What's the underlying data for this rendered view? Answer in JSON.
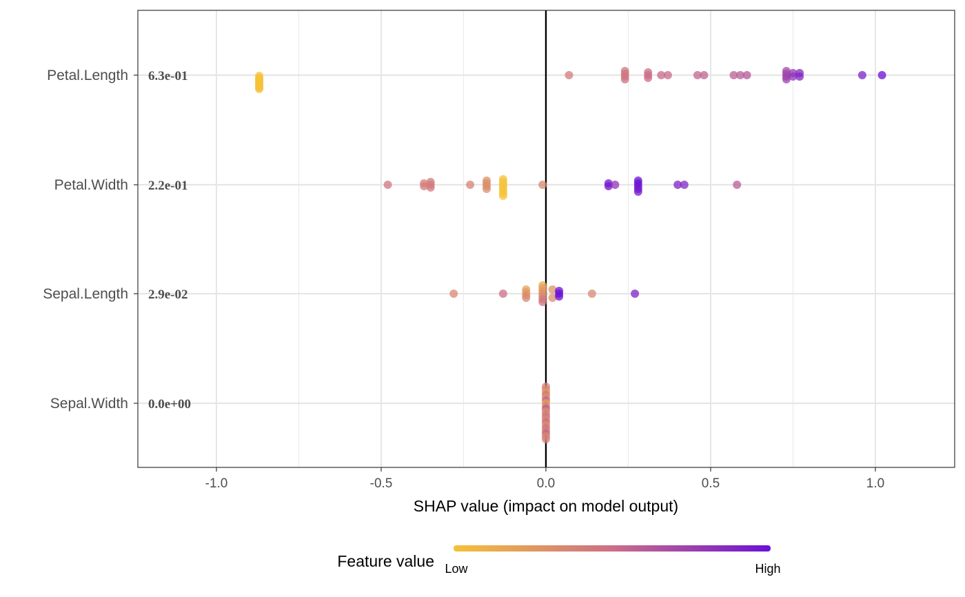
{
  "chart_data": {
    "type": "scatter",
    "title": "",
    "xlabel": "SHAP value (impact on model output)",
    "xlim": [
      -1.2,
      1.2
    ],
    "x_ticks": [
      -1.0,
      -0.5,
      0.0,
      0.5,
      1.0
    ],
    "x_tick_labels": [
      "-1.0",
      "-0.5",
      "0.0",
      "0.5",
      "1.0"
    ],
    "grid": true,
    "zero_line": true,
    "legend": {
      "title": "Feature value",
      "low_label": "Low",
      "high_label": "High",
      "low_color": "#f5c13a",
      "high_color": "#6a10d6",
      "placement": "bottom"
    },
    "features": [
      {
        "name": "Petal.Length",
        "importance": "6.3e-01",
        "points": [
          [
            -0.87,
            0.0,
            1
          ],
          [
            -0.87,
            0.0,
            4
          ],
          [
            -0.87,
            0.0,
            6
          ],
          [
            -0.87,
            0.0,
            8
          ],
          [
            -0.87,
            0.0,
            10
          ],
          [
            -0.87,
            0.0,
            12
          ],
          [
            -0.87,
            0.0,
            14
          ],
          [
            -0.87,
            0.0,
            16
          ],
          [
            -0.87,
            0.0,
            18
          ],
          [
            -0.87,
            0.0,
            20
          ],
          [
            0.07,
            0.42,
            0
          ],
          [
            0.24,
            0.45,
            -6
          ],
          [
            0.24,
            0.46,
            -2
          ],
          [
            0.24,
            0.46,
            2
          ],
          [
            0.24,
            0.47,
            6
          ],
          [
            0.31,
            0.5,
            -4
          ],
          [
            0.31,
            0.5,
            0
          ],
          [
            0.31,
            0.51,
            4
          ],
          [
            0.35,
            0.52,
            0
          ],
          [
            0.37,
            0.53,
            0
          ],
          [
            0.46,
            0.55,
            0
          ],
          [
            0.48,
            0.56,
            0
          ],
          [
            0.57,
            0.58,
            0
          ],
          [
            0.59,
            0.6,
            0
          ],
          [
            0.61,
            0.62,
            0
          ],
          [
            0.73,
            0.7,
            -6
          ],
          [
            0.73,
            0.72,
            -2
          ],
          [
            0.73,
            0.73,
            2
          ],
          [
            0.73,
            0.74,
            6
          ],
          [
            0.75,
            0.78,
            -3
          ],
          [
            0.75,
            0.8,
            2
          ],
          [
            0.77,
            0.86,
            -3
          ],
          [
            0.77,
            0.88,
            2
          ],
          [
            0.96,
            0.9,
            0
          ],
          [
            1.02,
            1.0,
            0
          ]
        ]
      },
      {
        "name": "Petal.Width",
        "importance": "2.2e-01",
        "points": [
          [
            -0.48,
            0.45,
            0
          ],
          [
            -0.37,
            0.4,
            -2
          ],
          [
            -0.37,
            0.4,
            2
          ],
          [
            -0.35,
            0.42,
            -4
          ],
          [
            -0.35,
            0.42,
            0
          ],
          [
            -0.35,
            0.43,
            4
          ],
          [
            -0.23,
            0.38,
            0
          ],
          [
            -0.18,
            0.3,
            -6
          ],
          [
            -0.18,
            0.3,
            -2
          ],
          [
            -0.18,
            0.31,
            2
          ],
          [
            -0.18,
            0.32,
            6
          ],
          [
            -0.13,
            0.0,
            -8
          ],
          [
            -0.13,
            0.0,
            -4
          ],
          [
            -0.13,
            0.0,
            0
          ],
          [
            -0.13,
            0.0,
            4
          ],
          [
            -0.13,
            0.0,
            8
          ],
          [
            -0.13,
            0.0,
            12
          ],
          [
            -0.13,
            0.0,
            16
          ],
          [
            -0.01,
            0.35,
            0
          ],
          [
            0.19,
            0.95,
            -2
          ],
          [
            0.19,
            0.96,
            2
          ],
          [
            0.21,
            0.8,
            0
          ],
          [
            0.28,
            1.0,
            -6
          ],
          [
            0.28,
            1.0,
            -2
          ],
          [
            0.28,
            0.98,
            2
          ],
          [
            0.28,
            0.97,
            6
          ],
          [
            0.28,
            0.95,
            10
          ],
          [
            0.4,
            0.9,
            0
          ],
          [
            0.42,
            0.88,
            0
          ],
          [
            0.58,
            0.6,
            0
          ]
        ]
      },
      {
        "name": "Sepal.Length",
        "importance": "2.9e-02",
        "points": [
          [
            -0.28,
            0.35,
            0
          ],
          [
            -0.13,
            0.5,
            0
          ],
          [
            -0.06,
            0.2,
            -6
          ],
          [
            -0.06,
            0.25,
            -2
          ],
          [
            -0.06,
            0.3,
            2
          ],
          [
            -0.06,
            0.35,
            6
          ],
          [
            -0.01,
            0.15,
            -12
          ],
          [
            -0.01,
            0.2,
            -8
          ],
          [
            -0.01,
            0.25,
            -4
          ],
          [
            -0.01,
            0.3,
            0
          ],
          [
            -0.01,
            0.35,
            4
          ],
          [
            -0.01,
            0.4,
            8
          ],
          [
            -0.01,
            0.45,
            12
          ],
          [
            0.02,
            0.3,
            -6
          ],
          [
            0.02,
            0.3,
            6
          ],
          [
            0.04,
            1.0,
            -4
          ],
          [
            0.04,
            1.0,
            0
          ],
          [
            0.04,
            1.0,
            4
          ],
          [
            0.14,
            0.35,
            0
          ],
          [
            0.27,
            0.9,
            0
          ]
        ]
      },
      {
        "name": "Sepal.Width",
        "importance": "0.0e+00",
        "points": [
          [
            0.0,
            0.4,
            -24
          ],
          [
            0.0,
            0.35,
            -20
          ],
          [
            0.0,
            0.25,
            -16
          ],
          [
            0.0,
            0.45,
            -12
          ],
          [
            0.0,
            0.3,
            -8
          ],
          [
            0.0,
            0.55,
            -4
          ],
          [
            0.0,
            0.2,
            0
          ],
          [
            0.0,
            0.35,
            4
          ],
          [
            0.0,
            0.6,
            8
          ],
          [
            0.0,
            0.3,
            12
          ],
          [
            0.0,
            0.4,
            16
          ],
          [
            0.0,
            0.45,
            20
          ],
          [
            0.0,
            0.35,
            24
          ],
          [
            0.0,
            0.5,
            28
          ],
          [
            0.0,
            0.3,
            32
          ],
          [
            0.0,
            0.45,
            36
          ],
          [
            0.0,
            0.4,
            40
          ],
          [
            0.0,
            0.55,
            44
          ],
          [
            0.0,
            0.35,
            48
          ],
          [
            0.0,
            0.4,
            52
          ]
        ]
      }
    ]
  }
}
